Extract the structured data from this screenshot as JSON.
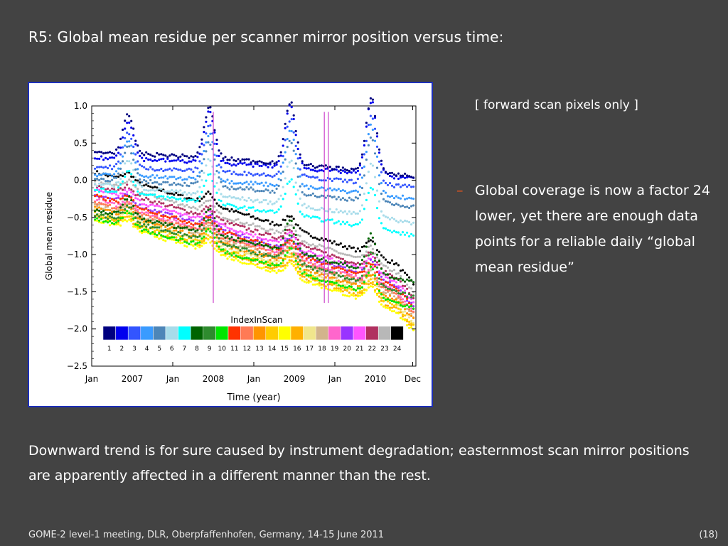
{
  "slide": {
    "title": "R5: Global mean residue per scanner mirror position versus time:",
    "note": "[ forward scan pixels only ]",
    "bullets": [
      "Global coverage is now a factor 24 lower, yet there are enough data points for a reliable daily “global mean residue”"
    ],
    "bullet_marker": "–",
    "conclusion": "Downward trend is for sure caused by instrument degradation; easternmost scan mirror positions are apparently affected in a different manner than the rest.",
    "footer": "GOME-2 level-1 meeting, DLR, Oberpfaffenhofen, Germany, 14-15 June 2011",
    "page_number": "(18)"
  },
  "colors": {
    "background": "#434343",
    "frame": "#1d2fb8",
    "bullet_dash": "#e8561c",
    "vertical_markers": "#cc44cc"
  },
  "chart_data": {
    "type": "scatter",
    "title": "",
    "xlabel": "Time (year)",
    "ylabel": "Global mean residue",
    "xlim": [
      2007.0,
      2011.0
    ],
    "ylim": [
      -2.5,
      1.0
    ],
    "y_ticks": [
      1.0,
      0.5,
      0.0,
      -0.5,
      -1.0,
      -1.5,
      -2.0,
      -2.5
    ],
    "y_tick_labels": [
      "1.0",
      "0.5",
      "0.0",
      "−0.5",
      "−1.0",
      "−1.5",
      "−2.0",
      "−2.5"
    ],
    "x_ticks": [
      {
        "label": "Jan",
        "value": 2007.0
      },
      {
        "label": "2007",
        "value": 2007.5
      },
      {
        "label": "Jan",
        "value": 2008.0
      },
      {
        "label": "2008",
        "value": 2008.5
      },
      {
        "label": "Jan",
        "value": 2009.0
      },
      {
        "label": "2009",
        "value": 2009.5
      },
      {
        "label": "Jan",
        "value": 2010.0
      },
      {
        "label": "2010",
        "value": 2010.5
      },
      {
        "label": "Dec",
        "value": 2010.96
      }
    ],
    "vertical_markers": [
      2008.5,
      2009.87,
      2009.92
    ],
    "legend": {
      "title": "IndexInScan",
      "placement": "bottom-center",
      "labels": [
        "1",
        "2",
        "3",
        "4",
        "5",
        "6",
        "7",
        "8",
        "9",
        "10",
        "11",
        "12",
        "13",
        "14",
        "15",
        "16",
        "17",
        "18",
        "19",
        "20",
        "21",
        "22",
        "23",
        "24"
      ]
    },
    "series": [
      {
        "index": 1,
        "color": "#000080",
        "offset": 0.38,
        "drift": -0.15,
        "wiggle": 0.14
      },
      {
        "index": 2,
        "color": "#0000ee",
        "offset": 0.3,
        "drift": -0.1,
        "wiggle": 0.14
      },
      {
        "index": 3,
        "color": "#3355ff",
        "offset": 0.18,
        "drift": -0.1,
        "wiggle": 0.13
      },
      {
        "index": 4,
        "color": "#3a9bff",
        "offset": 0.08,
        "drift": -0.15,
        "wiggle": 0.13
      },
      {
        "index": 5,
        "color": "#4d86b8",
        "offset": 0.02,
        "drift": -0.2,
        "wiggle": 0.12
      },
      {
        "index": 6,
        "color": "#a8dcea",
        "offset": -0.05,
        "drift": -0.35,
        "wiggle": 0.1
      },
      {
        "index": 7,
        "color": "#00ffff",
        "offset": -0.12,
        "drift": -0.45,
        "wiggle": 0.08
      },
      {
        "index": 8,
        "color": "#006400",
        "offset": -0.4,
        "drift": -0.8,
        "wiggle": 0.07
      },
      {
        "index": 9,
        "color": "#2e8b2e",
        "offset": -0.45,
        "drift": -0.95,
        "wiggle": 0.06
      },
      {
        "index": 10,
        "color": "#00e600",
        "offset": -0.5,
        "drift": -1.05,
        "wiggle": 0.05
      },
      {
        "index": 11,
        "color": "#ff3300",
        "offset": -0.2,
        "drift": -1.15,
        "wiggle": 0.03
      },
      {
        "index": 12,
        "color": "#ff7a55",
        "offset": -0.28,
        "drift": -1.15,
        "wiggle": 0.03
      },
      {
        "index": 13,
        "color": "#ff9500",
        "offset": -0.36,
        "drift": -1.15,
        "wiggle": 0.03
      },
      {
        "index": 14,
        "color": "#ffcc00",
        "offset": -0.44,
        "drift": -1.15,
        "wiggle": 0.03
      },
      {
        "index": 15,
        "color": "#ffff00",
        "offset": -0.52,
        "drift": -1.15,
        "wiggle": 0.03
      },
      {
        "index": 16,
        "color": "#ffb000",
        "offset": -0.48,
        "drift": -1.15,
        "wiggle": 0.03
      },
      {
        "index": 17,
        "color": "#f0e68c",
        "offset": -0.4,
        "drift": -1.15,
        "wiggle": 0.03
      },
      {
        "index": 18,
        "color": "#d2b48c",
        "offset": -0.32,
        "drift": -1.15,
        "wiggle": 0.03
      },
      {
        "index": 19,
        "color": "#ff66cc",
        "offset": -0.25,
        "drift": -1.15,
        "wiggle": 0.03
      },
      {
        "index": 20,
        "color": "#9933ff",
        "offset": -0.18,
        "drift": -1.15,
        "wiggle": 0.03
      },
      {
        "index": 21,
        "color": "#ff55ff",
        "offset": -0.12,
        "drift": -1.15,
        "wiggle": 0.03
      },
      {
        "index": 22,
        "color": "#b03060",
        "offset": -0.06,
        "drift": -1.15,
        "wiggle": 0.03
      },
      {
        "index": 23,
        "color": "#b8b8b8",
        "offset": 0.01,
        "drift": -1.15,
        "wiggle": 0.03
      },
      {
        "index": 24,
        "color": "#000000",
        "offset": 0.12,
        "drift": -1.15,
        "wiggle": 0.03
      }
    ]
  }
}
